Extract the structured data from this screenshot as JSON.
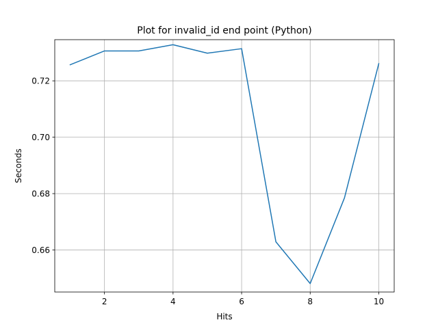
{
  "chart_data": {
    "type": "line",
    "title": "Plot for invalid_id end point (Python)",
    "xlabel": "Hits",
    "ylabel": "Seconds",
    "xlim": [
      0.55,
      10.45
    ],
    "ylim": [
      0.6451,
      0.7346
    ],
    "xticks": [
      2,
      4,
      6,
      8,
      10
    ],
    "yticks": [
      0.66,
      0.68,
      0.7,
      0.72
    ],
    "xtick_labels": [
      "2",
      "4",
      "6",
      "8",
      "10"
    ],
    "ytick_labels": [
      "0.66",
      "0.68",
      "0.70",
      "0.72"
    ],
    "grid": true,
    "legend": "none",
    "series": [
      {
        "color": "#1f77b4",
        "x": [
          1,
          2,
          3,
          4,
          5,
          6,
          7,
          8,
          9,
          10
        ],
        "y": [
          0.7257,
          0.7306,
          0.7306,
          0.7328,
          0.7298,
          0.7314,
          0.6629,
          0.6481,
          0.6785,
          0.7261
        ]
      }
    ]
  }
}
